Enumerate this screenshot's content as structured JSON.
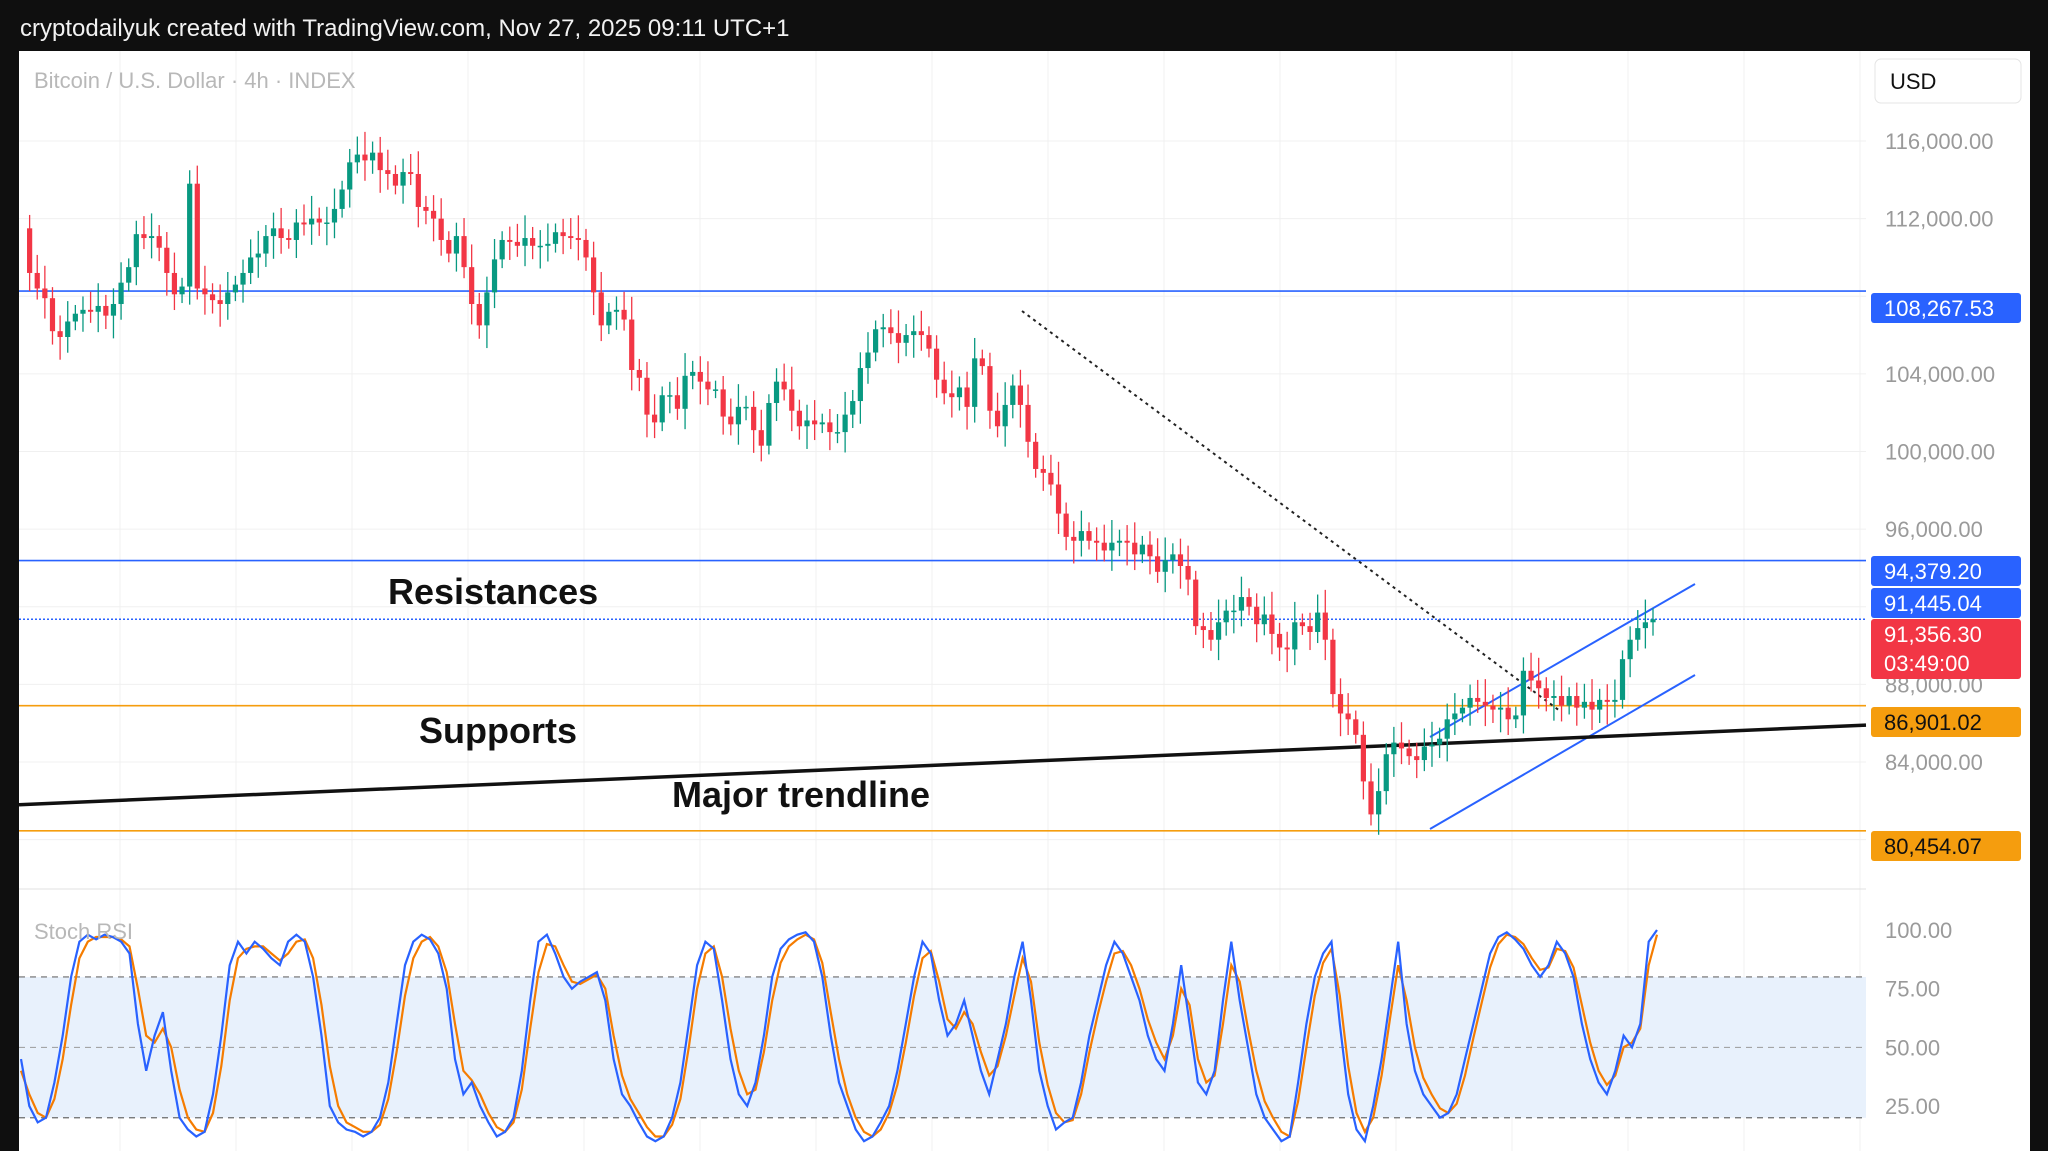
{
  "header": {
    "title": "cryptodailyuk created with TradingView.com, Nov 27, 2025 09:11 UTC+1"
  },
  "chart_data": {
    "type": "candlestick",
    "symbol": "Bitcoin / U.S. Dollar · 4h · INDEX",
    "currency": "USD",
    "price_axis": {
      "ticks": [
        "116,000.00",
        "112,000.00",
        "104,000.00",
        "100,000.00",
        "96,000.00",
        "88,000.00",
        "84,000.00"
      ],
      "tick_values": [
        116000,
        112000,
        104000,
        100000,
        96000,
        88000,
        84000
      ],
      "range": [
        79000,
        120000
      ]
    },
    "price_tags": [
      {
        "value": 108267.53,
        "label": "108,267.53",
        "color": "#2962ff"
      },
      {
        "value": 94379.2,
        "label": "94,379.20",
        "color": "#2962ff"
      },
      {
        "value": 91445.04,
        "label": "91,445.04",
        "color": "#2962ff"
      },
      {
        "value": 91356.3,
        "label": "91,356.30",
        "sublabel": "03:49:00",
        "color": "#f23645"
      },
      {
        "value": 86901.02,
        "label": "86,901.02",
        "color": "#f59d0e"
      },
      {
        "value": 80454.07,
        "label": "80,454.07",
        "color": "#f59d0e"
      }
    ],
    "horizontal_lines": [
      {
        "value": 108267.53,
        "color": "#2962ff"
      },
      {
        "value": 94379.2,
        "color": "#2962ff"
      },
      {
        "value": 91356.3,
        "color": "#2962ff",
        "style": "dotted"
      },
      {
        "value": 86901.02,
        "color": "#f59d0e"
      },
      {
        "value": 80454.07,
        "color": "#f59d0e"
      }
    ],
    "annotations": [
      "Resistances",
      "Supports",
      "Major trendline"
    ],
    "trendline": {
      "from_bar": 0,
      "from_value": 81800,
      "to_bar": 280,
      "to_value": 85900
    },
    "price_series": [
      111500,
      109200,
      108400,
      107900,
      106200,
      105900,
      106700,
      107100,
      107300,
      107200,
      107500,
      107000,
      107600,
      108700,
      109500,
      111200,
      111000,
      111100,
      110500,
      109200,
      108100,
      108500,
      113800,
      108400,
      108100,
      107800,
      107600,
      108200,
      108600,
      109200,
      110000,
      110200,
      111100,
      111500,
      111000,
      110900,
      111800,
      111700,
      112000,
      111800,
      111800,
      112500,
      113500,
      114900,
      115300,
      115000,
      115400,
      114500,
      114300,
      113700,
      114400,
      114300,
      112600,
      112400,
      112000,
      110900,
      110200,
      111100,
      109500,
      107600,
      106500,
      108200,
      109900,
      110900,
      110800,
      110600,
      111000,
      110600,
      110600,
      110700,
      111300,
      111100,
      111000,
      110900,
      110000,
      108200,
      106500,
      107200,
      107300,
      106800,
      104200,
      103800,
      101900,
      101500,
      102900,
      102900,
      102200,
      103900,
      104100,
      103600,
      103200,
      103200,
      101800,
      101400,
      102300,
      102300,
      101100,
      100300,
      102500,
      103600,
      103200,
      102100,
      101300,
      101600,
      101400,
      101500,
      101000,
      101000,
      101900,
      102600,
      104300,
      105100,
      106300,
      106400,
      106100,
      105600,
      106000,
      106200,
      106000,
      105300,
      103700,
      103000,
      102800,
      103300,
      102300,
      104800,
      104400,
      102100,
      101300,
      102400,
      103400,
      102400,
      100500,
      99100,
      98900,
      98300,
      96800,
      95600,
      95400,
      95900,
      95400,
      95300,
      94900,
      95300,
      95400,
      95300,
      94700,
      95200,
      94600,
      93800,
      94400,
      94700,
      94100,
      93400,
      91000,
      90800,
      90300,
      91200,
      91800,
      91800,
      92500,
      92000,
      91100,
      91600,
      90600,
      89900,
      89800,
      91200,
      91000,
      90700,
      91700,
      90300,
      87500,
      86500,
      86200,
      85400,
      83000,
      81300,
      82500,
      84400,
      85000,
      84700,
      84300,
      84100,
      84800,
      84900,
      85200,
      86200,
      86500,
      86800,
      87300,
      87100,
      86900,
      86700,
      86800,
      86200,
      86400,
      88700,
      88200,
      87800,
      87300,
      87400,
      86900,
      87400,
      86800,
      87100,
      86700,
      87200,
      87100,
      87200,
      89300,
      90300,
      90900,
      91200,
      91356
    ],
    "stoch_rsi": {
      "label": "Stoch RSI",
      "ticks": [
        "100.00",
        "75.00",
        "50.00",
        "25.00"
      ],
      "tick_values": [
        100,
        75,
        50,
        25
      ],
      "bands": [
        20,
        80
      ],
      "range": [
        0,
        100
      ],
      "k_color": "#2962ff",
      "d_color": "#f57c00",
      "k": [
        45,
        25,
        18,
        20,
        35,
        55,
        80,
        95,
        98,
        96,
        98,
        97,
        95,
        90,
        60,
        40,
        55,
        65,
        40,
        20,
        15,
        12,
        14,
        30,
        55,
        85,
        95,
        90,
        95,
        92,
        88,
        85,
        95,
        98,
        95,
        80,
        55,
        25,
        18,
        15,
        14,
        12,
        14,
        20,
        35,
        60,
        85,
        95,
        98,
        96,
        90,
        75,
        45,
        30,
        35,
        25,
        18,
        12,
        14,
        20,
        40,
        70,
        95,
        98,
        90,
        80,
        75,
        78,
        80,
        82,
        70,
        45,
        30,
        25,
        18,
        12,
        10,
        12,
        20,
        35,
        60,
        85,
        95,
        92,
        70,
        45,
        30,
        25,
        35,
        55,
        80,
        92,
        96,
        98,
        99,
        95,
        80,
        55,
        35,
        25,
        15,
        10,
        12,
        18,
        25,
        40,
        60,
        80,
        95,
        90,
        70,
        55,
        60,
        70,
        55,
        40,
        30,
        45,
        60,
        80,
        95,
        70,
        40,
        25,
        15,
        18,
        20,
        35,
        55,
        70,
        85,
        95,
        90,
        80,
        70,
        55,
        45,
        40,
        60,
        85,
        60,
        35,
        30,
        40,
        70,
        95,
        70,
        50,
        30,
        20,
        15,
        10,
        12,
        35,
        60,
        80,
        90,
        95,
        60,
        30,
        15,
        10,
        25,
        45,
        70,
        95,
        60,
        40,
        30,
        25,
        20,
        22,
        30,
        45,
        60,
        75,
        90,
        97,
        99,
        96,
        92,
        85,
        80,
        85,
        95,
        90,
        80,
        60,
        45,
        35,
        30,
        40,
        55,
        50,
        60,
        95,
        100
      ],
      "d": [
        40,
        30,
        22,
        20,
        28,
        45,
        68,
        88,
        95,
        97,
        97,
        97,
        96,
        93,
        75,
        55,
        52,
        58,
        50,
        32,
        20,
        15,
        14,
        22,
        42,
        70,
        88,
        92,
        93,
        93,
        90,
        87,
        90,
        95,
        96,
        88,
        68,
        42,
        25,
        18,
        16,
        14,
        14,
        17,
        28,
        48,
        72,
        88,
        95,
        97,
        93,
        82,
        60,
        40,
        36,
        30,
        22,
        16,
        14,
        18,
        32,
        58,
        82,
        94,
        93,
        85,
        78,
        77,
        79,
        81,
        75,
        55,
        38,
        28,
        22,
        16,
        12,
        12,
        17,
        28,
        50,
        75,
        90,
        93,
        80,
        58,
        40,
        30,
        32,
        48,
        70,
        86,
        93,
        96,
        98,
        96,
        86,
        65,
        45,
        30,
        20,
        14,
        12,
        15,
        22,
        34,
        52,
        72,
        88,
        91,
        78,
        62,
        58,
        65,
        60,
        48,
        38,
        42,
        55,
        72,
        88,
        78,
        52,
        34,
        22,
        18,
        19,
        30,
        48,
        64,
        78,
        90,
        91,
        85,
        75,
        62,
        52,
        45,
        55,
        75,
        68,
        45,
        35,
        38,
        60,
        85,
        78,
        58,
        40,
        27,
        20,
        14,
        12,
        27,
        50,
        72,
        86,
        92,
        72,
        42,
        22,
        14,
        20,
        38,
        62,
        85,
        70,
        50,
        37,
        30,
        24,
        22,
        26,
        38,
        54,
        69,
        84,
        94,
        98,
        97,
        94,
        88,
        83,
        84,
        92,
        91,
        84,
        68,
        52,
        40,
        34,
        38,
        50,
        52,
        58,
        85,
        98
      ]
    }
  }
}
